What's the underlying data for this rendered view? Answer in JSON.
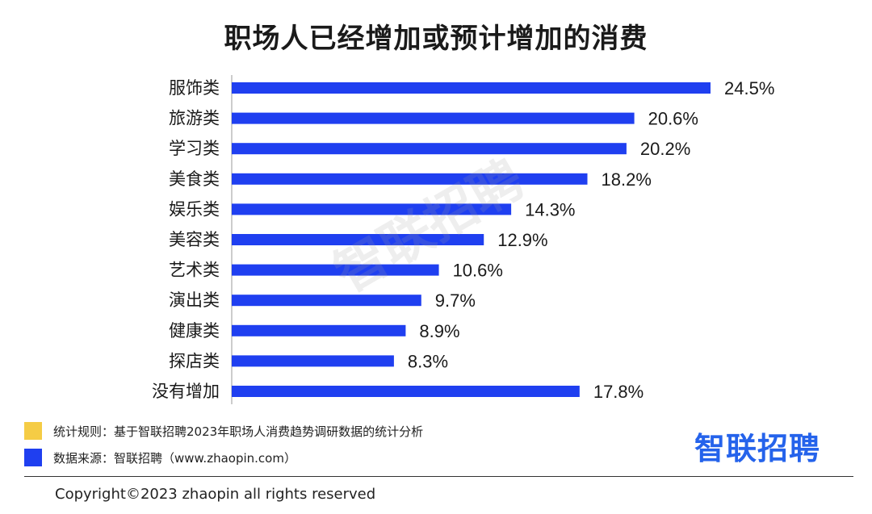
{
  "colors": {
    "bar": "#1f3ff0",
    "note_swatch": "#f5cc45",
    "source_swatch": "#1f3ff0",
    "logo": "#2563eb"
  },
  "chart_data": {
    "type": "bar",
    "orientation": "horizontal",
    "title": "职场人已经增加或预计增加的消费",
    "categories": [
      "服饰类",
      "旅游类",
      "学习类",
      "美食类",
      "娱乐类",
      "美容类",
      "艺术类",
      "演出类",
      "健康类",
      "探店类",
      "没有增加"
    ],
    "values": [
      24.5,
      20.6,
      20.2,
      18.2,
      14.3,
      12.9,
      10.6,
      9.7,
      8.9,
      8.3,
      17.8
    ],
    "value_labels": [
      "24.5%",
      "20.6%",
      "20.2%",
      "18.2%",
      "14.3%",
      "12.9%",
      "10.6%",
      "9.7%",
      "8.9%",
      "8.3%",
      "17.8%"
    ],
    "unit": "%",
    "xlim": [
      0,
      24.5
    ],
    "grid": false,
    "legend": "none"
  },
  "watermark": "智联招聘",
  "legend": {
    "note": "统计规则：基于智联招聘2023年职场人消费趋势调研数据的统计分析",
    "source": "数据来源：智联招聘（www.zhaopin.com）"
  },
  "logo_text": "智联招聘",
  "copyright": "Copyright©2023 zhaopin all rights reserved"
}
